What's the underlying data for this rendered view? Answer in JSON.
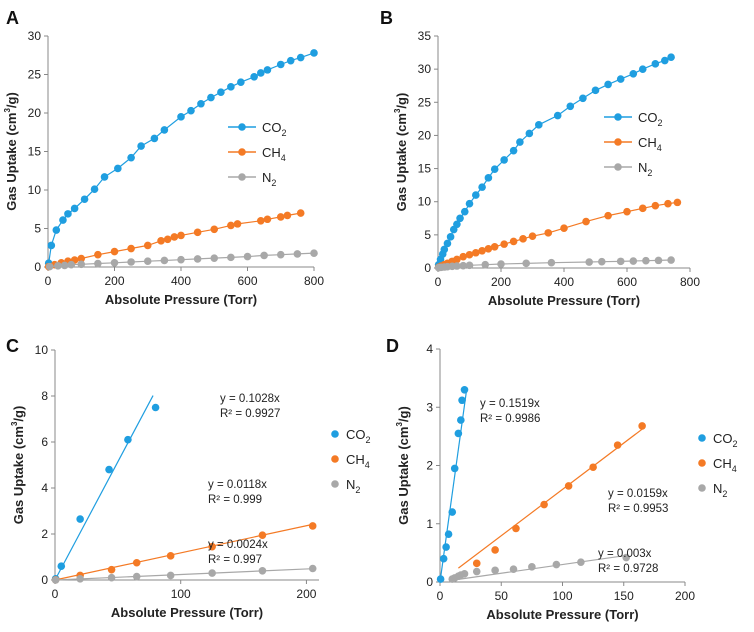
{
  "figure": {
    "colors": {
      "co2": "#1f9ee0",
      "ch4": "#f47a25",
      "n2": "#a8a8a8",
      "axis": "#888888",
      "text": "#222222"
    }
  },
  "chart_data": [
    {
      "panel": "A",
      "type": "scatter",
      "xlabel": "Absolute Pressure (Torr)",
      "ylabel": "Gas Uptake (cm3/g)",
      "xlim": [
        0,
        800
      ],
      "ylim": [
        0,
        30
      ],
      "xticks": [
        0,
        200,
        400,
        600,
        800
      ],
      "yticks": [
        0,
        5,
        10,
        15,
        20,
        25,
        30
      ],
      "legend": "inside-right",
      "series": [
        {
          "name": "CO2",
          "color_key": "co2",
          "line": "curve",
          "x": [
            2,
            10,
            25,
            45,
            60,
            80,
            110,
            140,
            170,
            210,
            250,
            280,
            320,
            350,
            400,
            430,
            460,
            490,
            520,
            550,
            580,
            620,
            640,
            660,
            700,
            730,
            760,
            800
          ],
          "y": [
            0.5,
            2.8,
            4.8,
            6.1,
            6.9,
            7.6,
            8.8,
            10.1,
            11.7,
            12.8,
            14.2,
            15.7,
            16.7,
            17.8,
            19.5,
            20.3,
            21.2,
            22.0,
            22.7,
            23.4,
            24.0,
            24.7,
            25.2,
            25.6,
            26.3,
            26.8,
            27.2,
            27.8
          ]
        },
        {
          "name": "CH4",
          "color_key": "ch4",
          "line": "straight",
          "x": [
            2,
            20,
            40,
            60,
            80,
            100,
            150,
            200,
            250,
            300,
            340,
            360,
            380,
            400,
            450,
            500,
            550,
            570,
            640,
            660,
            700,
            720,
            760
          ],
          "y": [
            0.05,
            0.3,
            0.55,
            0.75,
            0.9,
            1.1,
            1.6,
            2.0,
            2.4,
            2.8,
            3.4,
            3.6,
            3.9,
            4.1,
            4.5,
            4.9,
            5.4,
            5.6,
            6.0,
            6.2,
            6.5,
            6.7,
            7.0
          ]
        },
        {
          "name": "N2",
          "color_key": "n2",
          "line": "straight",
          "x": [
            5,
            30,
            50,
            70,
            100,
            150,
            200,
            250,
            300,
            350,
            400,
            450,
            500,
            550,
            600,
            650,
            700,
            750,
            800
          ],
          "y": [
            0.05,
            0.15,
            0.2,
            0.3,
            0.35,
            0.45,
            0.55,
            0.65,
            0.75,
            0.85,
            0.95,
            1.05,
            1.15,
            1.25,
            1.35,
            1.5,
            1.6,
            1.7,
            1.8
          ]
        }
      ]
    },
    {
      "panel": "B",
      "type": "scatter",
      "xlabel": "Absolute Pressure (Torr)",
      "ylabel": "Gas Uptake (cm3/g)",
      "xlim": [
        0,
        800
      ],
      "ylim": [
        0,
        35
      ],
      "xticks": [
        0,
        200,
        400,
        600,
        800
      ],
      "yticks": [
        0,
        5,
        10,
        15,
        20,
        25,
        30,
        35
      ],
      "legend": "inside-right",
      "series": [
        {
          "name": "CO2",
          "color_key": "co2",
          "line": "curve",
          "x": [
            2,
            8,
            15,
            20,
            30,
            40,
            50,
            60,
            70,
            85,
            100,
            120,
            140,
            160,
            180,
            210,
            240,
            260,
            290,
            320,
            380,
            420,
            460,
            500,
            540,
            580,
            620,
            650,
            690,
            720,
            740
          ],
          "y": [
            0.5,
            1.3,
            2.1,
            2.8,
            3.7,
            4.7,
            5.8,
            6.6,
            7.5,
            8.5,
            9.7,
            11.0,
            12.2,
            13.6,
            14.9,
            16.3,
            17.7,
            19.0,
            20.3,
            21.6,
            23.0,
            24.4,
            25.6,
            26.8,
            27.7,
            28.5,
            29.3,
            30.0,
            30.8,
            31.3,
            31.8
          ]
        },
        {
          "name": "CH4",
          "color_key": "ch4",
          "line": "straight",
          "x": [
            2,
            10,
            20,
            30,
            45,
            60,
            80,
            100,
            120,
            140,
            160,
            180,
            210,
            240,
            270,
            300,
            350,
            400,
            470,
            540,
            600,
            650,
            690,
            730,
            760
          ],
          "y": [
            0.1,
            0.3,
            0.5,
            0.7,
            1.0,
            1.3,
            1.7,
            2.0,
            2.3,
            2.6,
            2.9,
            3.2,
            3.6,
            4.0,
            4.4,
            4.8,
            5.3,
            6.0,
            7.0,
            7.9,
            8.5,
            9.0,
            9.4,
            9.7,
            9.9
          ]
        },
        {
          "name": "N2",
          "color_key": "n2",
          "line": "straight",
          "x": [
            2,
            10,
            20,
            30,
            45,
            60,
            80,
            100,
            150,
            200,
            280,
            360,
            480,
            520,
            580,
            620,
            660,
            700,
            740
          ],
          "y": [
            0.05,
            0.1,
            0.15,
            0.2,
            0.25,
            0.3,
            0.35,
            0.4,
            0.5,
            0.6,
            0.7,
            0.8,
            0.9,
            0.95,
            1.0,
            1.05,
            1.1,
            1.15,
            1.2
          ]
        }
      ]
    },
    {
      "panel": "C",
      "type": "scatter",
      "xlabel": "Absolute Pressure (Torr)",
      "ylabel": "Gas Uptake (cm3/g)",
      "xlim": [
        0,
        210
      ],
      "ylim": [
        0,
        10
      ],
      "xticks": [
        0,
        100,
        200
      ],
      "yticks": [
        0,
        2,
        4,
        6,
        8,
        10
      ],
      "legend": "outside-right",
      "series": [
        {
          "name": "CO2",
          "color_key": "co2",
          "fit_slope": 0.1028,
          "fit_xmax": 78,
          "x": [
            0.5,
            5,
            20,
            43,
            58,
            80
          ],
          "y": [
            0.05,
            0.6,
            2.65,
            4.8,
            6.1,
            7.5
          ],
          "equation": "y = 0.1028x",
          "r2": "R² = 0.9927"
        },
        {
          "name": "CH4",
          "color_key": "ch4",
          "fit_slope": 0.0118,
          "fit_xmax": 205,
          "x": [
            0.5,
            20,
            45,
            65,
            92,
            125,
            165,
            205
          ],
          "y": [
            0.01,
            0.2,
            0.45,
            0.75,
            1.05,
            1.45,
            1.95,
            2.35
          ],
          "equation": "y = 0.0118x",
          "r2": "R² = 0.999"
        },
        {
          "name": "N2",
          "color_key": "n2",
          "fit_slope": 0.0024,
          "fit_xmax": 205,
          "x": [
            0.5,
            20,
            45,
            65,
            92,
            125,
            165,
            205
          ],
          "y": [
            0.0,
            0.05,
            0.1,
            0.15,
            0.2,
            0.3,
            0.4,
            0.5
          ],
          "equation": "y = 0.0024x",
          "r2": "R² = 0.997"
        }
      ]
    },
    {
      "panel": "D",
      "type": "scatter",
      "xlabel": "Absolute Pressure (Torr)",
      "ylabel": "Gas Uptake (cm3/g)",
      "xlim": [
        0,
        200
      ],
      "ylim": [
        0,
        4
      ],
      "xticks": [
        0,
        50,
        100,
        150,
        200
      ],
      "yticks": [
        0,
        1,
        2,
        3,
        4
      ],
      "legend": "outside-right",
      "series": [
        {
          "name": "CO2",
          "color_key": "co2",
          "fit_slope": 0.1519,
          "fit_xmin": 0,
          "fit_xmax": 22,
          "x": [
            0.5,
            3,
            5,
            7,
            10,
            12,
            15,
            17,
            18,
            20
          ],
          "y": [
            0.05,
            0.4,
            0.6,
            0.82,
            1.2,
            1.95,
            2.55,
            2.78,
            3.12,
            3.3
          ],
          "equation": "y = 0.1519x",
          "r2": "R² = 0.9986"
        },
        {
          "name": "CH4",
          "color_key": "ch4",
          "fit_slope": 0.0159,
          "fit_xmin": 15,
          "fit_xmax": 165,
          "x": [
            30,
            45,
            62,
            85,
            105,
            125,
            145,
            165
          ],
          "y": [
            0.32,
            0.55,
            0.92,
            1.33,
            1.65,
            1.97,
            2.35,
            2.68
          ],
          "equation": "y = 0.0159x",
          "r2": "R² = 0.9953"
        },
        {
          "name": "N2",
          "color_key": "n2",
          "fit_slope": 0.003,
          "fit_xmin": 15,
          "fit_xmax": 152,
          "x": [
            10,
            12,
            15,
            17,
            20,
            30,
            45,
            60,
            75,
            95,
            115,
            152
          ],
          "y": [
            0.05,
            0.07,
            0.1,
            0.12,
            0.14,
            0.18,
            0.2,
            0.22,
            0.26,
            0.3,
            0.34,
            0.42
          ],
          "equation": "y = 0.003x",
          "r2": "R² = 0.9728"
        }
      ]
    }
  ]
}
